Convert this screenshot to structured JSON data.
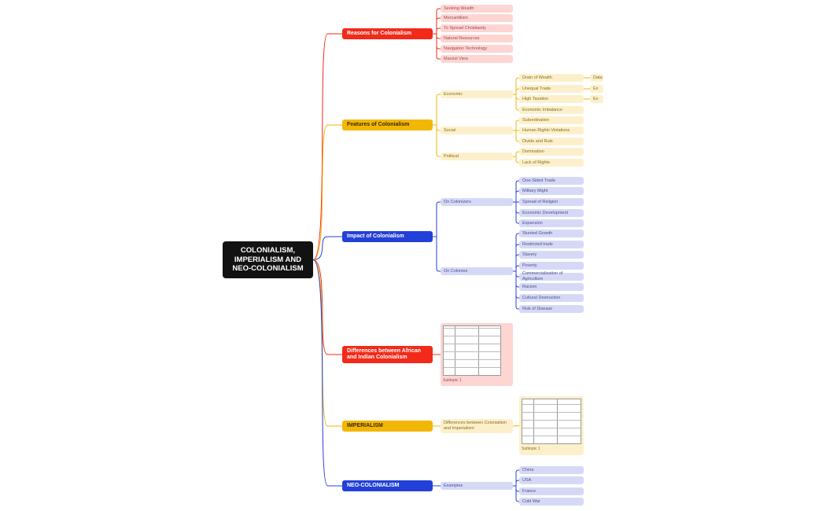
{
  "colors": {
    "red": "#f22a1a",
    "yellow": "#f2b705",
    "blue": "#2340d8",
    "root": "#121212"
  },
  "root": "COLONIALISM, IMPERIALISM AND NEO-COLONIALISM",
  "reasons": {
    "title": "Reasons for Colonialism",
    "items": [
      "Seeking Wealth",
      "Mercantilism",
      "To Spread Christianity",
      "Natural Resources",
      "Navigation Technology",
      "Marxist View"
    ]
  },
  "features": {
    "title": "Features of Colonialism",
    "economic": {
      "label": "Economic",
      "items": [
        "Drain of Wealth",
        "Unequal Trade",
        "High Taxation",
        "Economic Imbalance"
      ],
      "leaves": [
        "Data",
        "Ex",
        "Ex"
      ]
    },
    "social": {
      "label": "Social",
      "items": [
        "Subordination",
        "Human Rights Violations",
        "Divide and Rule"
      ]
    },
    "political": {
      "label": "Political",
      "items": [
        "Domination",
        "Lack of Rights"
      ]
    }
  },
  "impact": {
    "title": "Impact of Colonialism",
    "colonizers": {
      "label": "On Colonizers",
      "items": [
        "One-Sided Trade",
        "Military Might",
        "Spread of Religion",
        "Economic Development",
        "Expansion"
      ]
    },
    "colonies": {
      "label": "On Colonies",
      "items": [
        "Stunted Growth",
        "Restricted trade",
        "Slavery",
        "Poverty",
        "Commercialisation of Agriculture",
        "Racism",
        "Cultural Destruction",
        "Risk of Disease"
      ]
    }
  },
  "differences": {
    "title": "Differences between African and Indian Colonialism",
    "caption": "Subtopic 1"
  },
  "imperialism": {
    "title": "IMPERIALISM",
    "child": "Differences between Colonialism and Imperialism",
    "caption": "Subtopic 1"
  },
  "neo": {
    "title": "NEO-COLONIALISM",
    "child": "Examples",
    "items": [
      "China",
      "USA",
      "France",
      "Cold War"
    ]
  }
}
